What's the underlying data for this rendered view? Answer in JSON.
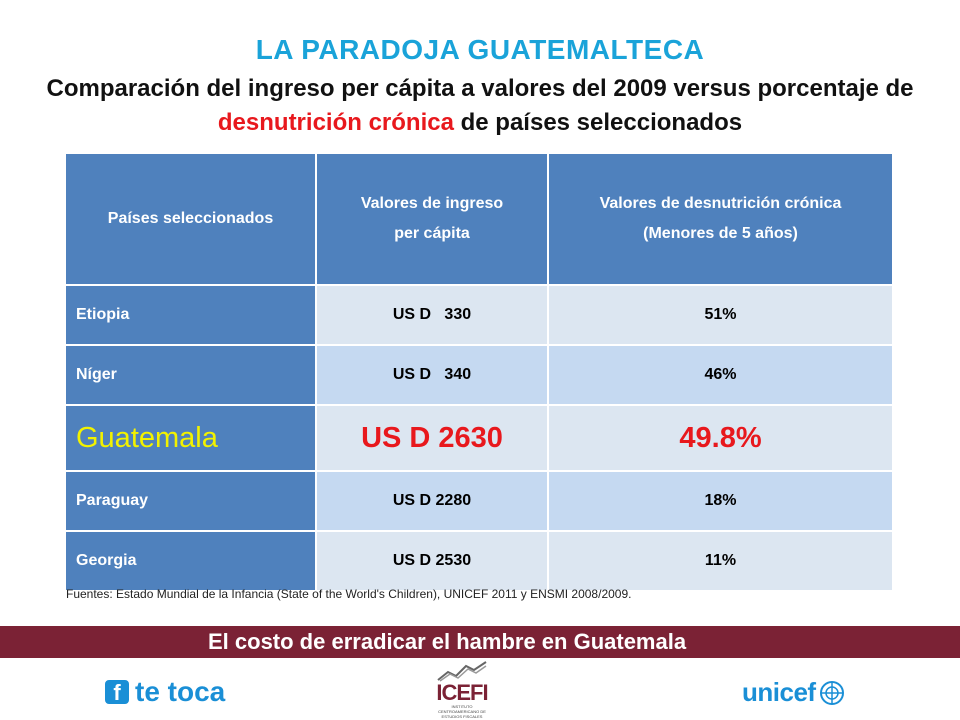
{
  "title": "LA PARADOJA GUATEMALTECA",
  "subtitle": {
    "part1": "Comparación del ingreso per cápita a valores del 2009 versus porcentaje de ",
    "highlight": "desnutrición crónica",
    "part2": " de países seleccionados"
  },
  "table": {
    "headers": {
      "col1": "Países seleccionados",
      "col2_line1": "Valores de ingreso",
      "col2_line2": "per cápita",
      "col3_line1": "Valores de desnutrición crónica",
      "col3_line2": "(Menores de 5 años)"
    },
    "rows": [
      {
        "country": "Etiopia",
        "income": "US D   330",
        "malnutrition": "51%"
      },
      {
        "country": "Níger",
        "income": "US D   340",
        "malnutrition": "46%"
      },
      {
        "country": "Guatemala",
        "income": "US D 2630",
        "malnutrition": "49.8%"
      },
      {
        "country": "Paraguay",
        "income": "US D 2280",
        "malnutrition": "18%"
      },
      {
        "country": "Georgia",
        "income": "US D 2530",
        "malnutrition": "11%"
      }
    ]
  },
  "source": "Fuentes: Estado Mundial de la Infancia (State of the World's Children), UNICEF 2011 y ENSMI 2008/2009.",
  "banner": "El costo de erradicar el hambre en Guatemala",
  "logos": {
    "tetoca": {
      "icon_letter": "f",
      "text": "te toca"
    },
    "icefi": {
      "text": "ICEFI",
      "sub": "INSTITUTO CENTROAMERICANO DE ESTUDIOS FISCALES"
    },
    "unicef": {
      "text": "unicef"
    }
  },
  "colors": {
    "title": "#1aa3d9",
    "highlight_red": "#e8181d",
    "table_header": "#4f81bd",
    "guatemala_country": "#f2f200",
    "banner": "#7b2235"
  }
}
